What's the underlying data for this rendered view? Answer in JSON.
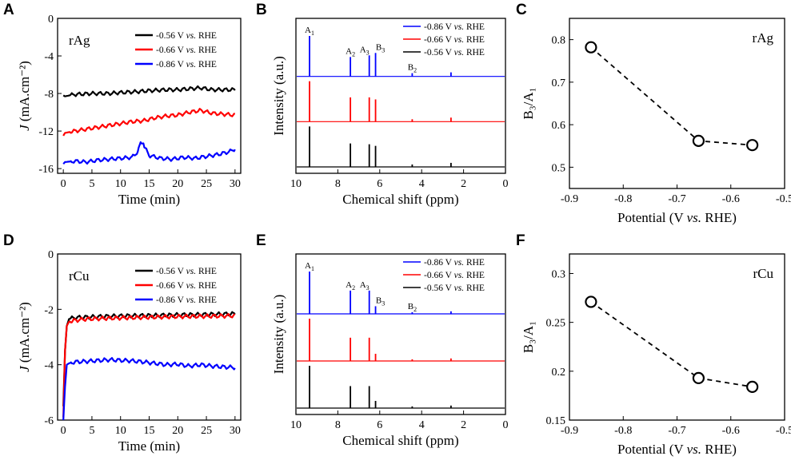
{
  "panel_labels": [
    "A",
    "B",
    "C",
    "D",
    "E",
    "F"
  ],
  "colors": {
    "black": "#000000",
    "red": "#ff0000",
    "blue": "#0000ff"
  },
  "chart_data": [
    {
      "id": "A",
      "type": "line",
      "annotation": "rAg",
      "xlabel": "Time (min)",
      "ylabel": "J (mA.cm⁻²)",
      "xlim": [
        -1,
        31
      ],
      "ylim": [
        -16.5,
        0
      ],
      "xticks": [
        0,
        5,
        10,
        15,
        20,
        25,
        30
      ],
      "yticks": [
        0,
        -4,
        -8,
        -12,
        -16
      ],
      "legend_position": "top-right",
      "series": [
        {
          "name": "-0.56 V vs. RHE",
          "color": "#000000",
          "x": [
            0,
            0.3,
            2,
            5,
            8,
            10,
            13,
            15,
            18,
            20,
            22,
            24,
            26,
            28,
            30
          ],
          "y": [
            -8.2,
            -8.3,
            -8.1,
            -8.0,
            -8.0,
            -7.9,
            -7.8,
            -7.7,
            -7.6,
            -7.6,
            -7.5,
            -7.4,
            -7.6,
            -7.6,
            -7.6
          ]
        },
        {
          "name": "-0.66 V vs. RHE",
          "color": "#ff0000",
          "x": [
            0,
            0.3,
            2,
            4,
            6,
            8,
            10,
            12,
            14,
            16,
            18,
            20,
            22,
            24,
            26,
            28,
            30
          ],
          "y": [
            -12.5,
            -12.2,
            -12.0,
            -11.8,
            -11.6,
            -11.4,
            -11.2,
            -11.0,
            -10.9,
            -10.6,
            -10.4,
            -10.3,
            -10.0,
            -9.8,
            -10.1,
            -10.2,
            -10.3
          ]
        },
        {
          "name": "-0.86 V vs. RHE",
          "color": "#0000ff",
          "x": [
            0,
            0.3,
            2,
            4,
            6,
            8,
            10,
            12,
            13,
            13.5,
            14,
            15,
            17,
            19,
            21,
            23,
            25,
            27,
            29,
            30
          ],
          "y": [
            -15.5,
            -15.3,
            -15.2,
            -15.3,
            -15.1,
            -15.0,
            -14.9,
            -14.8,
            -14.2,
            -13.3,
            -13.5,
            -14.6,
            -14.9,
            -15.0,
            -14.8,
            -14.9,
            -14.7,
            -14.5,
            -14.2,
            -13.9
          ]
        }
      ]
    },
    {
      "id": "B",
      "type": "line",
      "subtype": "nmr-stack",
      "xlabel": "Chemical shift (ppm)",
      "ylabel": "Intensity (a.u.)",
      "xlim": [
        10,
        0
      ],
      "xticks": [
        10,
        8,
        6,
        4,
        2,
        0
      ],
      "peak_labels": [
        {
          "name": "A",
          "sub": "1",
          "ppm": 9.35
        },
        {
          "name": "A",
          "sub": "2",
          "ppm": 7.4
        },
        {
          "name": "A",
          "sub": "3",
          "ppm": 6.5
        },
        {
          "name": "B",
          "sub": "3",
          "ppm": 6.2
        },
        {
          "name": "B",
          "sub": "2",
          "ppm": 4.45
        }
      ],
      "legend_position": "top-right",
      "series": [
        {
          "name": "-0.86 V vs. RHE",
          "color": "#0000ff",
          "peaks_ppm": [
            9.35,
            7.4,
            6.5,
            6.2,
            4.45,
            2.6
          ],
          "heights": [
            1.0,
            0.48,
            0.52,
            0.58,
            0.08,
            0.1
          ]
        },
        {
          "name": "-0.66 V vs. RHE",
          "color": "#ff0000",
          "peaks_ppm": [
            9.35,
            7.4,
            6.5,
            6.2,
            4.45,
            2.6
          ],
          "heights": [
            1.0,
            0.6,
            0.6,
            0.55,
            0.06,
            0.1
          ]
        },
        {
          "name": "-0.56 V vs. RHE",
          "color": "#000000",
          "peaks_ppm": [
            9.35,
            7.4,
            6.5,
            6.2,
            4.45,
            2.6
          ],
          "heights": [
            1.0,
            0.58,
            0.56,
            0.52,
            0.06,
            0.1
          ]
        }
      ]
    },
    {
      "id": "C",
      "type": "scatter",
      "annotation": "rAg",
      "xlabel": "Potential (V vs. RHE)",
      "ylabel": "B₃/A₁",
      "xlim": [
        -0.9,
        -0.5
      ],
      "ylim": [
        0.45,
        0.85
      ],
      "xticks": [
        -0.9,
        -0.8,
        -0.7,
        -0.6,
        -0.5
      ],
      "yticks": [
        0.5,
        0.6,
        0.7,
        0.8
      ],
      "x": [
        -0.86,
        -0.66,
        -0.56
      ],
      "y": [
        0.782,
        0.562,
        0.552
      ]
    },
    {
      "id": "D",
      "type": "line",
      "annotation": "rCu",
      "xlabel": "Time (min)",
      "ylabel": "J (mA.cm⁻²)",
      "xlim": [
        -1,
        31
      ],
      "ylim": [
        -6,
        0
      ],
      "xticks": [
        0,
        5,
        10,
        15,
        20,
        25,
        30
      ],
      "yticks": [
        0,
        -2,
        -4,
        -6
      ],
      "legend_position": "top-right",
      "series": [
        {
          "name": "-0.56 V vs. RHE",
          "color": "#000000",
          "x": [
            0,
            0.3,
            0.6,
            1,
            2,
            4,
            8,
            12,
            16,
            20,
            24,
            28,
            30
          ],
          "y": [
            -5.5,
            -3.5,
            -2.6,
            -2.35,
            -2.3,
            -2.28,
            -2.25,
            -2.23,
            -2.22,
            -2.2,
            -2.19,
            -2.17,
            -2.16
          ]
        },
        {
          "name": "-0.66 V vs. RHE",
          "color": "#ff0000",
          "x": [
            0,
            0.3,
            0.6,
            1,
            2,
            4,
            8,
            12,
            16,
            20,
            24,
            28,
            30
          ],
          "y": [
            -5.9,
            -3.5,
            -2.6,
            -2.45,
            -2.4,
            -2.35,
            -2.32,
            -2.3,
            -2.28,
            -2.26,
            -2.25,
            -2.24,
            -2.23
          ]
        },
        {
          "name": "-0.86 V vs. RHE",
          "color": "#0000ff",
          "x": [
            0,
            0.3,
            0.6,
            1,
            2,
            4,
            6,
            8,
            10,
            12,
            14,
            16,
            18,
            20,
            22,
            24,
            26,
            28,
            30
          ],
          "y": [
            -6.0,
            -4.8,
            -4.0,
            -3.95,
            -3.9,
            -3.88,
            -3.85,
            -3.82,
            -3.84,
            -3.86,
            -3.9,
            -3.95,
            -4.0,
            -3.98,
            -4.05,
            -4.0,
            -4.05,
            -4.08,
            -4.1
          ]
        }
      ]
    },
    {
      "id": "E",
      "type": "line",
      "subtype": "nmr-stack",
      "xlabel": "Chemical shift (ppm)",
      "ylabel": "Intensity (a.u.)",
      "xlim": [
        10,
        0
      ],
      "xticks": [
        10,
        8,
        6,
        4,
        2,
        0
      ],
      "peak_labels": [
        {
          "name": "A",
          "sub": "1",
          "ppm": 9.35
        },
        {
          "name": "A",
          "sub": "2",
          "ppm": 7.4
        },
        {
          "name": "A",
          "sub": "3",
          "ppm": 6.5
        },
        {
          "name": "B",
          "sub": "3",
          "ppm": 6.2
        },
        {
          "name": "B",
          "sub": "2",
          "ppm": 4.45
        }
      ],
      "legend_position": "top-right",
      "series": [
        {
          "name": "-0.86 V vs. RHE",
          "color": "#0000ff",
          "peaks_ppm": [
            9.35,
            7.4,
            6.5,
            6.2,
            4.45,
            2.6
          ],
          "heights": [
            1.0,
            0.55,
            0.55,
            0.18,
            0.04,
            0.06
          ]
        },
        {
          "name": "-0.66 V vs. RHE",
          "color": "#ff0000",
          "peaks_ppm": [
            9.35,
            7.4,
            6.5,
            6.2,
            4.45,
            2.6
          ],
          "heights": [
            1.0,
            0.55,
            0.55,
            0.17,
            0.04,
            0.06
          ]
        },
        {
          "name": "-0.56 V vs. RHE",
          "color": "#000000",
          "peaks_ppm": [
            9.35,
            7.4,
            6.5,
            6.2,
            4.45,
            2.6
          ],
          "heights": [
            1.0,
            0.52,
            0.52,
            0.17,
            0.04,
            0.06
          ]
        }
      ]
    },
    {
      "id": "F",
      "type": "scatter",
      "annotation": "rCu",
      "xlabel": "Potential (V vs. RHE)",
      "ylabel": "B₃/A₁",
      "xlim": [
        -0.9,
        -0.5
      ],
      "ylim": [
        0.15,
        0.32
      ],
      "xticks": [
        -0.9,
        -0.8,
        -0.7,
        -0.6,
        -0.5
      ],
      "yticks": [
        0.15,
        0.2,
        0.25,
        0.3
      ],
      "x": [
        -0.86,
        -0.66,
        -0.56
      ],
      "y": [
        0.271,
        0.193,
        0.184
      ]
    }
  ]
}
